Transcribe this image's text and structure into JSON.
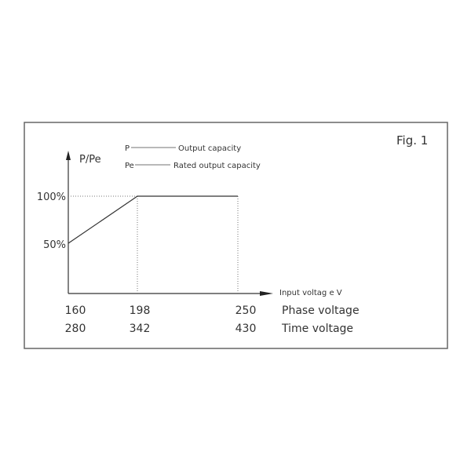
{
  "figure_label": "Fig. 1",
  "legend": [
    {
      "symbol": "P",
      "text": "Output capacity"
    },
    {
      "symbol": "Pe",
      "text": "Rated output capacity"
    }
  ],
  "chart_data": {
    "type": "line",
    "ylabel": "P/Pe",
    "xlabel": "Input voltag e V",
    "y_ticks": [
      "100%",
      "50%"
    ],
    "x_rows": [
      {
        "name": "Phase voltage",
        "ticks": [
          "160",
          "198",
          "250"
        ]
      },
      {
        "name": "Time voltage",
        "ticks": [
          "280",
          "342",
          "430"
        ]
      }
    ],
    "series": [
      {
        "x": [
          160,
          198,
          250
        ],
        "y": [
          50,
          100,
          100
        ]
      }
    ],
    "guides": "dotted lines at 100% and at x = 198, 250",
    "grid": false
  }
}
